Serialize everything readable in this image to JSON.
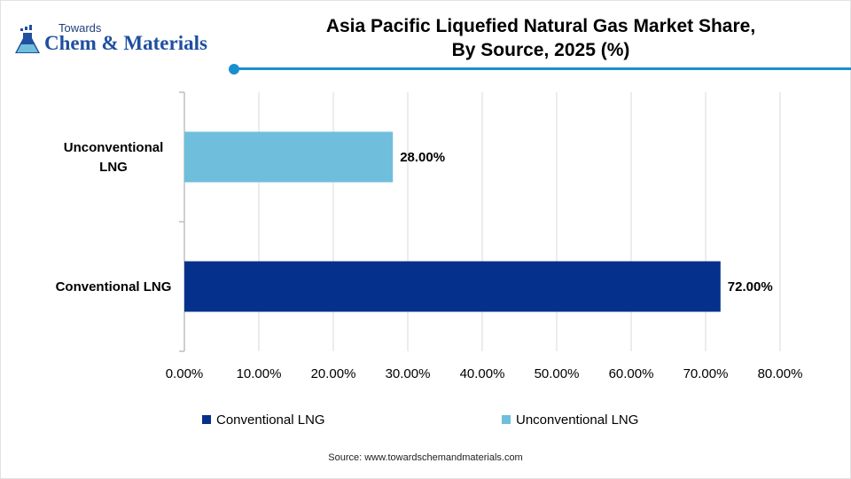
{
  "brand": {
    "small": "Towards",
    "big": "Chem & Materials"
  },
  "source_text": "Source: www.towardschemandmaterials.com",
  "chart_data": {
    "type": "bar",
    "orientation": "horizontal",
    "title_lines": [
      "Asia Pacific Liquefied Natural Gas Market Share,",
      "By Source, 2025 (%)"
    ],
    "categories": [
      "Unconventional LNG",
      "Conventional LNG"
    ],
    "category_lines": [
      [
        "Unconventional",
        "LNG"
      ],
      [
        "Conventional LNG"
      ]
    ],
    "values": [
      28.0,
      72.0
    ],
    "value_labels": [
      "28.00%",
      "72.00%"
    ],
    "colors": [
      "#6fbfdc",
      "#05318c"
    ],
    "xlim": [
      0,
      80
    ],
    "x_ticks": [
      0,
      10,
      20,
      30,
      40,
      50,
      60,
      70,
      80
    ],
    "x_tick_labels": [
      "0.00%",
      "10.00%",
      "20.00%",
      "30.00%",
      "40.00%",
      "50.00%",
      "60.00%",
      "70.00%",
      "80.00%"
    ],
    "grid": true,
    "legend": {
      "placement": "bottom",
      "entries": [
        {
          "name": "Conventional LNG",
          "color": "#05318c"
        },
        {
          "name": "Unconventional LNG",
          "color": "#6fbfdc"
        }
      ]
    }
  }
}
